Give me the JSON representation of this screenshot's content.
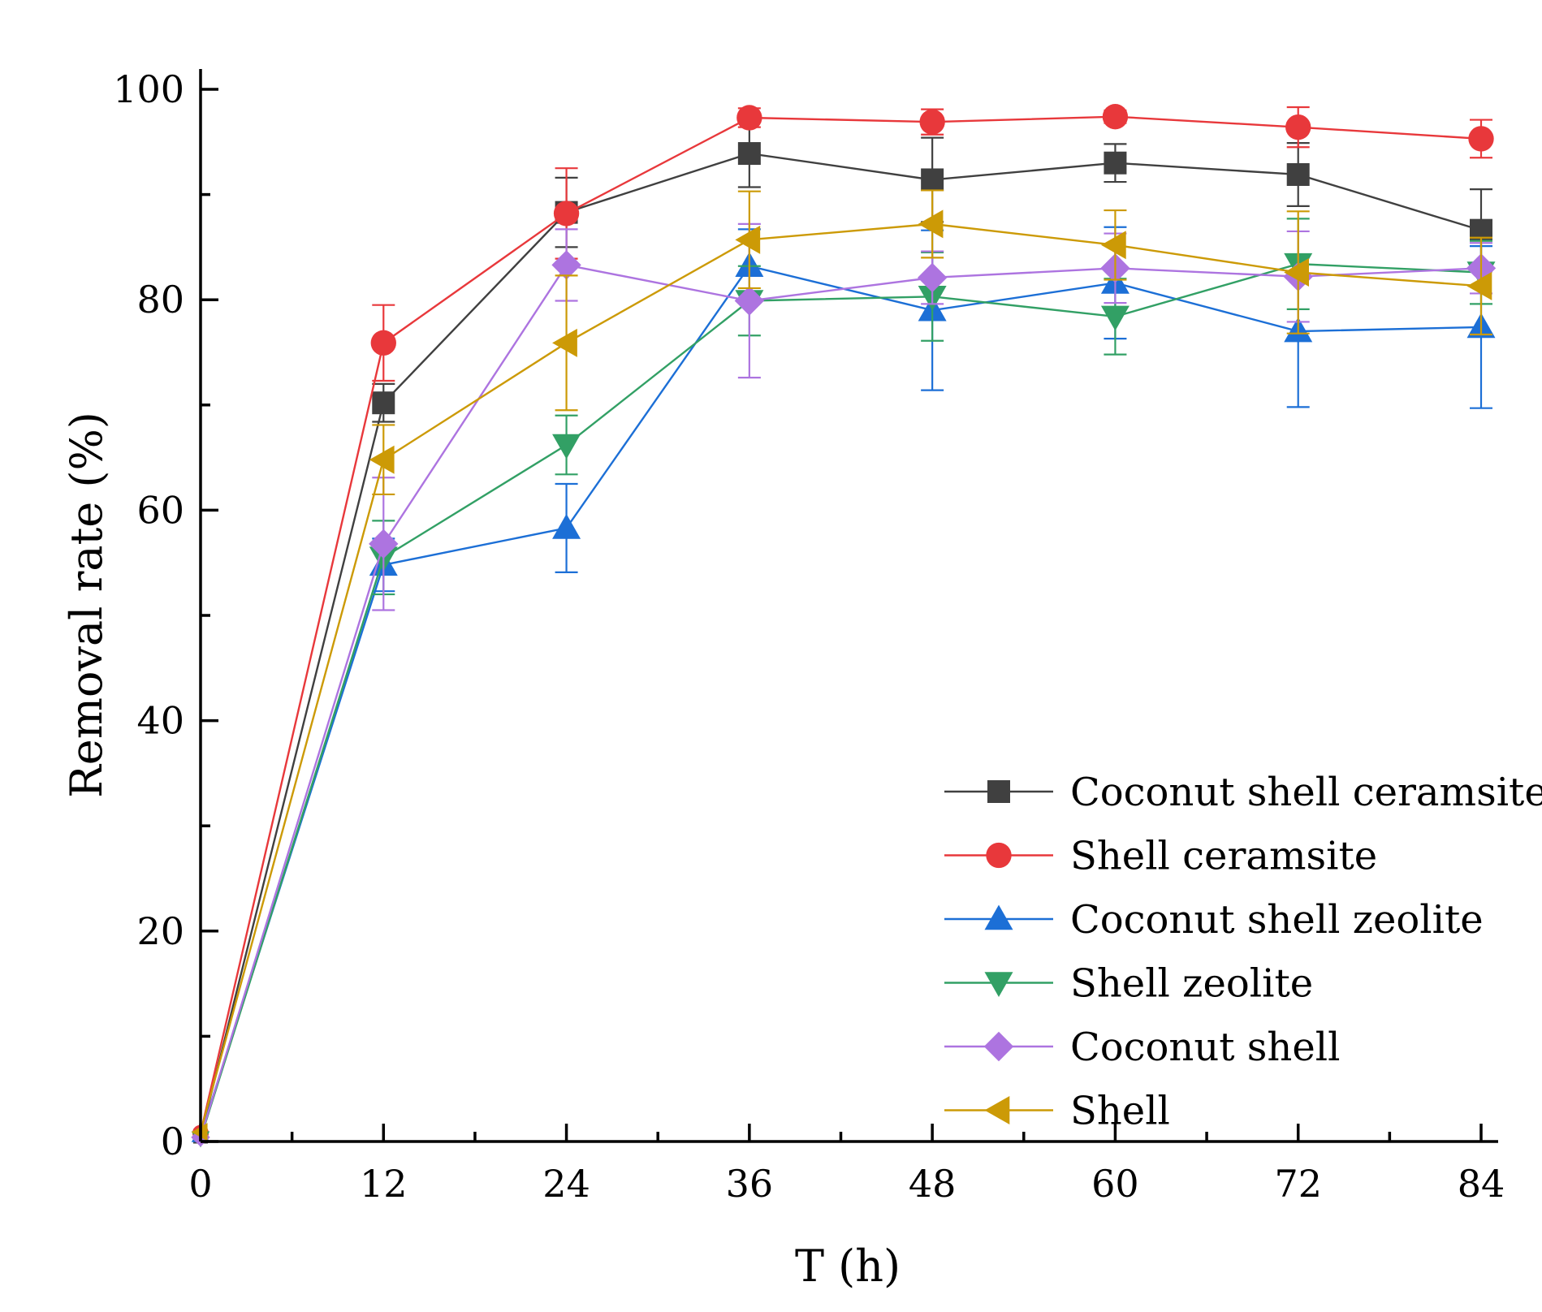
{
  "chart_data": {
    "type": "line",
    "title": "",
    "xlabel": "T (h)",
    "ylabel": "Removal rate (%)",
    "xlim": [
      0,
      85
    ],
    "ylim": [
      0,
      102
    ],
    "x_ticks": [
      0,
      12,
      24,
      36,
      48,
      60,
      72,
      84
    ],
    "y_ticks": [
      0,
      20,
      40,
      60,
      80,
      100
    ],
    "x": [
      0,
      12,
      24,
      36,
      48,
      60,
      72,
      84
    ],
    "legend_position": "bottom-right",
    "grid": false,
    "series": [
      {
        "name": "Coconut shell ceramsite",
        "color": "#404040",
        "marker": "square",
        "values": [
          0.5,
          70.2,
          88.3,
          93.9,
          91.4,
          93.0,
          91.9,
          86.6
        ],
        "errors": [
          0,
          1.8,
          3.3,
          3.2,
          4.0,
          1.8,
          3.0,
          3.9
        ]
      },
      {
        "name": "Shell ceramsite",
        "color": "#e8383b",
        "marker": "circle",
        "values": [
          0.8,
          75.9,
          88.2,
          97.3,
          96.9,
          97.4,
          96.4,
          95.3
        ],
        "errors": [
          0,
          3.6,
          4.3,
          0.9,
          1.2,
          0.6,
          1.9,
          1.8
        ]
      },
      {
        "name": "Coconut shell zeolite",
        "color": "#1c6fd6",
        "marker": "triangle-up",
        "values": [
          0.6,
          54.8,
          58.3,
          83.2,
          79.0,
          81.6,
          77.0,
          77.4
        ],
        "errors": [
          0,
          2.5,
          4.2,
          3.5,
          7.6,
          5.3,
          7.2,
          7.7
        ]
      },
      {
        "name": "Shell zeolite",
        "color": "#32a065",
        "marker": "triangle-down",
        "values": [
          0.3,
          55.5,
          66.2,
          79.9,
          80.3,
          78.4,
          83.4,
          82.6
        ],
        "errors": [
          0,
          3.5,
          2.8,
          3.3,
          4.2,
          3.6,
          4.3,
          3.0
        ]
      },
      {
        "name": "Coconut shell",
        "color": "#ad74e0",
        "marker": "diamond",
        "values": [
          0.4,
          56.8,
          83.3,
          79.9,
          82.1,
          83.0,
          82.2,
          83.0
        ],
        "errors": [
          0,
          6.3,
          3.4,
          7.3,
          2.5,
          3.3,
          4.3,
          2.4
        ]
      },
      {
        "name": "Shell",
        "color": "#cc9a06",
        "marker": "triangle-left",
        "values": [
          0.9,
          64.8,
          75.9,
          85.7,
          87.2,
          85.2,
          82.6,
          81.3
        ],
        "errors": [
          0,
          3.3,
          6.4,
          4.6,
          3.2,
          3.3,
          5.8,
          4.6
        ]
      }
    ]
  }
}
